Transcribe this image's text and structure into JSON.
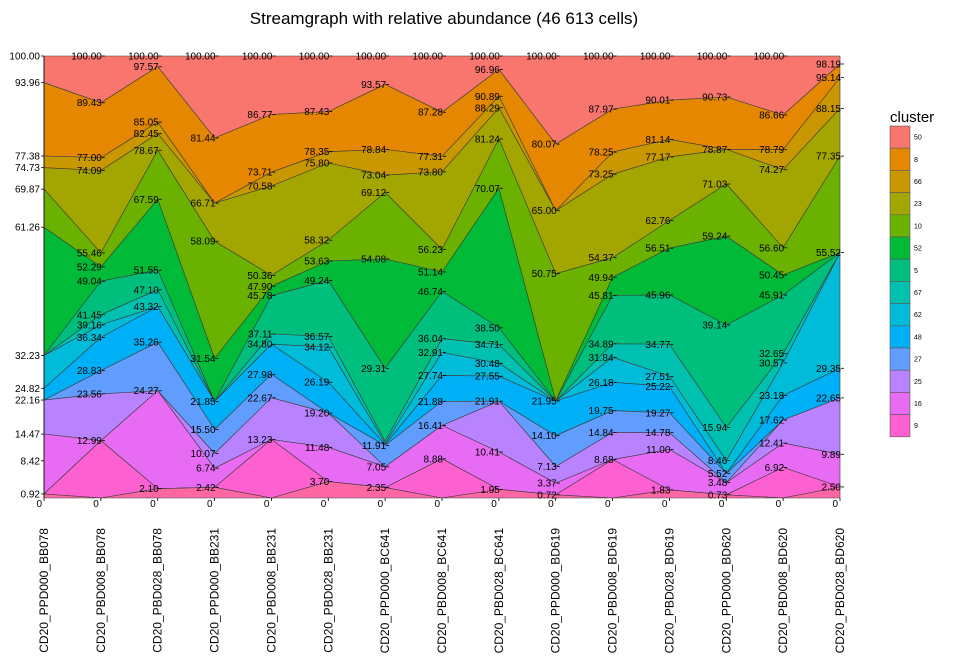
{
  "chart_data": {
    "type": "area",
    "title": "Streamgraph with relative abundance (46 613 cells)",
    "xlabel": "",
    "ylabel": "",
    "ylim": [
      0,
      100
    ],
    "grid": false,
    "legend_position": "right",
    "legend_title": "cluster",
    "categories": [
      "CD20_PPD000_BB078",
      "CD20_PBD008_BB078",
      "CD20_PBD028_BB078",
      "CD20_PPD000_BB231",
      "CD20_PBD008_BB231",
      "CD20_PBD028_BB231",
      "CD20_PPD000_BC641",
      "CD20_PBD008_BC641",
      "CD20_PBD028_BC641",
      "CD20_PPD000_BD619",
      "CD20_PBD008_BD619",
      "CD20_PBD028_BD619",
      "CD20_PPD000_BD620",
      "CD20_PBD008_BD620",
      "CD20_PBD028_BD620"
    ],
    "y_tick_labels": [
      "0.92",
      "8.42",
      "14.47",
      "22.16",
      "24.82",
      "32.23",
      "61.26",
      "69.87",
      "74.73",
      "77.38",
      "93.96",
      "100.00"
    ],
    "y_tick_values": [
      0.92,
      8.42,
      14.47,
      22.16,
      24.82,
      32.23,
      61.26,
      69.87,
      74.73,
      77.38,
      93.96,
      100.0
    ],
    "baseline_labels": [
      "0",
      "0",
      "0",
      "0",
      "0",
      "0",
      "0",
      "0",
      "0",
      "0",
      "0",
      "0",
      "0",
      "0",
      "0"
    ],
    "series": [
      {
        "name": "50",
        "color": "#F8766D",
        "upper": [
          100,
          100,
          100,
          100,
          100,
          100,
          100,
          100,
          100,
          100,
          100,
          100,
          100,
          100,
          100
        ]
      },
      {
        "name": "8",
        "color": "#E58700",
        "upper": [
          93.96,
          89.43,
          97.57,
          81.44,
          86.77,
          87.43,
          93.57,
          87.28,
          96.96,
          80.07,
          87.97,
          90.01,
          90.73,
          86.66,
          98.19
        ]
      },
      {
        "name": "66",
        "color": "#C99800",
        "upper": [
          77.38,
          77.0,
          85.05,
          66.71,
          73.71,
          78.35,
          78.84,
          77.31,
          90.89,
          65.0,
          78.25,
          81.14,
          78.87,
          78.79,
          95.14
        ]
      },
      {
        "name": "23",
        "color": "#A3A500",
        "upper": [
          74.73,
          74.09,
          82.45,
          66.71,
          70.58,
          75.8,
          73.04,
          73.8,
          88.29,
          65.0,
          73.25,
          77.17,
          78.87,
          74.27,
          88.15
        ]
      },
      {
        "name": "10",
        "color": "#6BB100",
        "upper": [
          69.87,
          55.46,
          78.67,
          58.09,
          50.36,
          58.32,
          69.12,
          56.23,
          81.24,
          50.75,
          54.37,
          62.76,
          71.03,
          56.6,
          77.35
        ]
      },
      {
        "name": "52",
        "color": "#00BA38",
        "upper": [
          61.26,
          52.29,
          67.59,
          31.54,
          47.9,
          53.63,
          54.08,
          51.14,
          70.07,
          21.95,
          49.94,
          56.51,
          59.24,
          50.45,
          55.52
        ]
      },
      {
        "name": "5",
        "color": "#00BF7D",
        "upper": [
          32.23,
          49.04,
          51.55,
          21.85,
          45.78,
          49.24,
          29.31,
          46.74,
          38.5,
          21.95,
          45.81,
          45.96,
          39.14,
          45.91,
          55.52
        ]
      },
      {
        "name": "67",
        "color": "#00C0AF",
        "upper": [
          32.23,
          41.45,
          47.1,
          21.85,
          37.11,
          36.57,
          12.8,
          36.04,
          34.71,
          21.95,
          34.89,
          34.77,
          15.94,
          32.65,
          55.52
        ]
      },
      {
        "name": "62",
        "color": "#00BCD8",
        "upper": [
          32.23,
          39.16,
          43.32,
          21.85,
          34.8,
          34.12,
          12.3,
          32.91,
          30.48,
          21.95,
          31.84,
          27.51,
          8.46,
          30.57,
          55.52
        ]
      },
      {
        "name": "48",
        "color": "#00B0F6",
        "upper": [
          24.82,
          36.34,
          43.32,
          21.85,
          34.8,
          26.19,
          12.1,
          27.74,
          27.55,
          21.95,
          26.18,
          25.22,
          5.52,
          23.18,
          29.35
        ]
      },
      {
        "name": "27",
        "color": "#619CFF",
        "upper": [
          22.16,
          28.83,
          35.26,
          15.5,
          27.98,
          19.2,
          11.91,
          21.88,
          21.91,
          14.1,
          19.75,
          19.27,
          5.52,
          17.62,
          22.65
        ]
      },
      {
        "name": "25",
        "color": "#B983FF",
        "upper": [
          22.16,
          23.56,
          24.27,
          10.07,
          22.67,
          19.2,
          7.05,
          16.41,
          21.91,
          7.13,
          14.84,
          14.78,
          3.48,
          17.62,
          22.65
        ]
      },
      {
        "name": "16",
        "color": "#E76BF3",
        "upper": [
          14.47,
          12.99,
          24.27,
          6.74,
          13.23,
          11.48,
          7.05,
          16.41,
          10.41,
          3.37,
          8.68,
          11.0,
          3.48,
          12.41,
          9.89
        ]
      },
      {
        "name": "9",
        "color": "#FD61D1",
        "upper": [
          0.92,
          12.99,
          2.1,
          2.42,
          13.23,
          3.7,
          2.35,
          8.88,
          1.95,
          0.72,
          8.68,
          1.83,
          0.73,
          6.92,
          2.5
        ]
      },
      {
        "name": "",
        "color": "#FF67A4",
        "upper": [
          0.92,
          0,
          2.1,
          2.42,
          0,
          3.7,
          2.35,
          0,
          1.95,
          0.72,
          0,
          1.83,
          0.73,
          0,
          2.5
        ]
      }
    ],
    "data_labels": [
      {
        "x": 1,
        "y": 100.0,
        "text": "100.00"
      },
      {
        "x": 2,
        "y": 100.0,
        "text": "100.00"
      },
      {
        "x": 3,
        "y": 100.0,
        "text": "100.00"
      },
      {
        "x": 4,
        "y": 100.0,
        "text": "100.00"
      },
      {
        "x": 5,
        "y": 100.0,
        "text": "100.00"
      },
      {
        "x": 6,
        "y": 100.0,
        "text": "100.00"
      },
      {
        "x": 7,
        "y": 100.0,
        "text": "100.00"
      },
      {
        "x": 8,
        "y": 100.0,
        "text": "100.00"
      },
      {
        "x": 9,
        "y": 100.0,
        "text": "100.00"
      },
      {
        "x": 10,
        "y": 100.0,
        "text": "100.00"
      },
      {
        "x": 11,
        "y": 100.0,
        "text": "100.00"
      },
      {
        "x": 12,
        "y": 100.0,
        "text": "100.00"
      },
      {
        "x": 13,
        "y": 100.0,
        "text": "100.00"
      },
      {
        "x": 1,
        "y": 89.43,
        "text": "89.43"
      },
      {
        "x": 1,
        "y": 77.0,
        "text": "77.00"
      },
      {
        "x": 1,
        "y": 74.09,
        "text": "74.09"
      },
      {
        "x": 1,
        "y": 55.46,
        "text": "55.46"
      },
      {
        "x": 1,
        "y": 52.29,
        "text": "52.29"
      },
      {
        "x": 1,
        "y": 49.04,
        "text": "49.04"
      },
      {
        "x": 1,
        "y": 41.45,
        "text": "41.45"
      },
      {
        "x": 1,
        "y": 39.16,
        "text": "39.16"
      },
      {
        "x": 1,
        "y": 36.34,
        "text": "36.34"
      },
      {
        "x": 1,
        "y": 28.83,
        "text": "28.83"
      },
      {
        "x": 1,
        "y": 23.56,
        "text": "23.56"
      },
      {
        "x": 1,
        "y": 12.99,
        "text": "12.99"
      },
      {
        "x": 2,
        "y": 97.57,
        "text": "97.57"
      },
      {
        "x": 2,
        "y": 85.05,
        "text": "85.05"
      },
      {
        "x": 2,
        "y": 82.45,
        "text": "82.45"
      },
      {
        "x": 2,
        "y": 78.67,
        "text": "78.67"
      },
      {
        "x": 2,
        "y": 67.59,
        "text": "67.59"
      },
      {
        "x": 2,
        "y": 51.55,
        "text": "51.55"
      },
      {
        "x": 2,
        "y": 47.1,
        "text": "47.10"
      },
      {
        "x": 2,
        "y": 43.32,
        "text": "43.32"
      },
      {
        "x": 2,
        "y": 35.26,
        "text": "35.26"
      },
      {
        "x": 2,
        "y": 24.27,
        "text": "24.27"
      },
      {
        "x": 2,
        "y": 2.1,
        "text": "2.10"
      },
      {
        "x": 3,
        "y": 81.44,
        "text": "81.44"
      },
      {
        "x": 3,
        "y": 66.71,
        "text": "66.71"
      },
      {
        "x": 3,
        "y": 58.09,
        "text": "58.09"
      },
      {
        "x": 3,
        "y": 31.54,
        "text": "31.54"
      },
      {
        "x": 3,
        "y": 21.85,
        "text": "21.85"
      },
      {
        "x": 3,
        "y": 15.5,
        "text": "15.50"
      },
      {
        "x": 3,
        "y": 10.07,
        "text": "10.07"
      },
      {
        "x": 3,
        "y": 6.74,
        "text": "6.74"
      },
      {
        "x": 3,
        "y": 2.42,
        "text": "2.42"
      },
      {
        "x": 4,
        "y": 86.77,
        "text": "86.77"
      },
      {
        "x": 4,
        "y": 73.71,
        "text": "73.71"
      },
      {
        "x": 4,
        "y": 70.58,
        "text": "70.58"
      },
      {
        "x": 4,
        "y": 50.36,
        "text": "50.36"
      },
      {
        "x": 4,
        "y": 47.9,
        "text": "47.90"
      },
      {
        "x": 4,
        "y": 45.78,
        "text": "45.78"
      },
      {
        "x": 4,
        "y": 37.11,
        "text": "37.11"
      },
      {
        "x": 4,
        "y": 34.8,
        "text": "34.80"
      },
      {
        "x": 4,
        "y": 27.98,
        "text": "27.98"
      },
      {
        "x": 4,
        "y": 22.67,
        "text": "22.67"
      },
      {
        "x": 4,
        "y": 13.23,
        "text": "13.23"
      },
      {
        "x": 5,
        "y": 87.43,
        "text": "87.43"
      },
      {
        "x": 5,
        "y": 78.35,
        "text": "78.35"
      },
      {
        "x": 5,
        "y": 75.8,
        "text": "75.80"
      },
      {
        "x": 5,
        "y": 58.32,
        "text": "58.32"
      },
      {
        "x": 5,
        "y": 53.63,
        "text": "53.63"
      },
      {
        "x": 5,
        "y": 49.24,
        "text": "49.24"
      },
      {
        "x": 5,
        "y": 36.57,
        "text": "36.57"
      },
      {
        "x": 5,
        "y": 34.12,
        "text": "34.12"
      },
      {
        "x": 5,
        "y": 26.19,
        "text": "26.19"
      },
      {
        "x": 5,
        "y": 19.2,
        "text": "19.20"
      },
      {
        "x": 5,
        "y": 11.48,
        "text": "11.48"
      },
      {
        "x": 5,
        "y": 3.7,
        "text": "3.70"
      },
      {
        "x": 6,
        "y": 93.57,
        "text": "93.57"
      },
      {
        "x": 6,
        "y": 78.84,
        "text": "78.84"
      },
      {
        "x": 6,
        "y": 73.04,
        "text": "73.04"
      },
      {
        "x": 6,
        "y": 69.12,
        "text": "69.12"
      },
      {
        "x": 6,
        "y": 54.08,
        "text": "54.08"
      },
      {
        "x": 6,
        "y": 29.31,
        "text": "29.31"
      },
      {
        "x": 6,
        "y": 11.91,
        "text": "11.91"
      },
      {
        "x": 6,
        "y": 7.05,
        "text": "7.05"
      },
      {
        "x": 6,
        "y": 2.35,
        "text": "2.35"
      },
      {
        "x": 7,
        "y": 87.28,
        "text": "87.28"
      },
      {
        "x": 7,
        "y": 77.31,
        "text": "77.31"
      },
      {
        "x": 7,
        "y": 73.8,
        "text": "73.80"
      },
      {
        "x": 7,
        "y": 56.23,
        "text": "56.23"
      },
      {
        "x": 7,
        "y": 51.14,
        "text": "51.14"
      },
      {
        "x": 7,
        "y": 46.74,
        "text": "46.74"
      },
      {
        "x": 7,
        "y": 36.04,
        "text": "36.04"
      },
      {
        "x": 7,
        "y": 32.91,
        "text": "32.91"
      },
      {
        "x": 7,
        "y": 27.74,
        "text": "27.74"
      },
      {
        "x": 7,
        "y": 21.88,
        "text": "21.88"
      },
      {
        "x": 7,
        "y": 16.41,
        "text": "16.41"
      },
      {
        "x": 7,
        "y": 8.88,
        "text": "8.88"
      },
      {
        "x": 8,
        "y": 96.96,
        "text": "96.96"
      },
      {
        "x": 8,
        "y": 90.89,
        "text": "90.89"
      },
      {
        "x": 8,
        "y": 88.29,
        "text": "88.29"
      },
      {
        "x": 8,
        "y": 81.24,
        "text": "81.24"
      },
      {
        "x": 8,
        "y": 70.07,
        "text": "70.07"
      },
      {
        "x": 8,
        "y": 38.5,
        "text": "38.50"
      },
      {
        "x": 8,
        "y": 34.71,
        "text": "34.71"
      },
      {
        "x": 8,
        "y": 30.48,
        "text": "30.48"
      },
      {
        "x": 8,
        "y": 27.55,
        "text": "27.55"
      },
      {
        "x": 8,
        "y": 21.91,
        "text": "21.91"
      },
      {
        "x": 8,
        "y": 10.41,
        "text": "10.41"
      },
      {
        "x": 8,
        "y": 1.95,
        "text": "1.95"
      },
      {
        "x": 9,
        "y": 80.07,
        "text": "80.07"
      },
      {
        "x": 9,
        "y": 65.0,
        "text": "65.00"
      },
      {
        "x": 9,
        "y": 50.75,
        "text": "50.75"
      },
      {
        "x": 9,
        "y": 21.95,
        "text": "21.95"
      },
      {
        "x": 9,
        "y": 14.1,
        "text": "14.10"
      },
      {
        "x": 9,
        "y": 7.13,
        "text": "7.13"
      },
      {
        "x": 9,
        "y": 3.37,
        "text": "3.37"
      },
      {
        "x": 9,
        "y": 0.72,
        "text": "0.72"
      },
      {
        "x": 10,
        "y": 87.97,
        "text": "87.97"
      },
      {
        "x": 10,
        "y": 78.25,
        "text": "78.25"
      },
      {
        "x": 10,
        "y": 73.25,
        "text": "73.25"
      },
      {
        "x": 10,
        "y": 54.37,
        "text": "54.37"
      },
      {
        "x": 10,
        "y": 49.94,
        "text": "49.94"
      },
      {
        "x": 10,
        "y": 45.81,
        "text": "45.81"
      },
      {
        "x": 10,
        "y": 34.89,
        "text": "34.89"
      },
      {
        "x": 10,
        "y": 31.84,
        "text": "31.84"
      },
      {
        "x": 10,
        "y": 26.18,
        "text": "26.18"
      },
      {
        "x": 10,
        "y": 19.75,
        "text": "19.75"
      },
      {
        "x": 10,
        "y": 14.84,
        "text": "14.84"
      },
      {
        "x": 10,
        "y": 8.68,
        "text": "8.68"
      },
      {
        "x": 11,
        "y": 90.01,
        "text": "90.01"
      },
      {
        "x": 11,
        "y": 81.14,
        "text": "81.14"
      },
      {
        "x": 11,
        "y": 77.17,
        "text": "77.17"
      },
      {
        "x": 11,
        "y": 62.76,
        "text": "62.76"
      },
      {
        "x": 11,
        "y": 56.51,
        "text": "56.51"
      },
      {
        "x": 11,
        "y": 45.96,
        "text": "45.96"
      },
      {
        "x": 11,
        "y": 34.77,
        "text": "34.77"
      },
      {
        "x": 11,
        "y": 27.51,
        "text": "27.51"
      },
      {
        "x": 11,
        "y": 25.22,
        "text": "25.22"
      },
      {
        "x": 11,
        "y": 19.27,
        "text": "19.27"
      },
      {
        "x": 11,
        "y": 14.78,
        "text": "14.78"
      },
      {
        "x": 11,
        "y": 11.0,
        "text": "11.00"
      },
      {
        "x": 11,
        "y": 1.83,
        "text": "1.83"
      },
      {
        "x": 12,
        "y": 90.73,
        "text": "90.73"
      },
      {
        "x": 12,
        "y": 78.87,
        "text": "78.87"
      },
      {
        "x": 12,
        "y": 71.03,
        "text": "71.03"
      },
      {
        "x": 12,
        "y": 59.24,
        "text": "59.24"
      },
      {
        "x": 12,
        "y": 39.14,
        "text": "39.14"
      },
      {
        "x": 12,
        "y": 15.94,
        "text": "15.94"
      },
      {
        "x": 12,
        "y": 8.46,
        "text": "8.46"
      },
      {
        "x": 12,
        "y": 5.52,
        "text": "5.52"
      },
      {
        "x": 12,
        "y": 3.48,
        "text": "3.48"
      },
      {
        "x": 12,
        "y": 0.73,
        "text": "0.73"
      },
      {
        "x": 13,
        "y": 86.66,
        "text": "86.66"
      },
      {
        "x": 13,
        "y": 78.79,
        "text": "78.79"
      },
      {
        "x": 13,
        "y": 74.27,
        "text": "74.27"
      },
      {
        "x": 13,
        "y": 56.6,
        "text": "56.60"
      },
      {
        "x": 13,
        "y": 50.45,
        "text": "50.45"
      },
      {
        "x": 13,
        "y": 45.91,
        "text": "45.91"
      },
      {
        "x": 13,
        "y": 32.65,
        "text": "32.65"
      },
      {
        "x": 13,
        "y": 30.57,
        "text": "30.57"
      },
      {
        "x": 13,
        "y": 23.18,
        "text": "23.18"
      },
      {
        "x": 13,
        "y": 17.62,
        "text": "17.62"
      },
      {
        "x": 13,
        "y": 12.41,
        "text": "12.41"
      },
      {
        "x": 13,
        "y": 6.92,
        "text": "6.92"
      },
      {
        "x": 14,
        "y": 98.19,
        "text": "98.19"
      },
      {
        "x": 14,
        "y": 95.14,
        "text": "95.14"
      },
      {
        "x": 14,
        "y": 88.15,
        "text": "88.15"
      },
      {
        "x": 14,
        "y": 77.35,
        "text": "77.35"
      },
      {
        "x": 14,
        "y": 55.52,
        "text": "55.52"
      },
      {
        "x": 14,
        "y": 29.35,
        "text": "29.35"
      },
      {
        "x": 14,
        "y": 22.65,
        "text": "22.65"
      },
      {
        "x": 14,
        "y": 9.89,
        "text": "9.89"
      },
      {
        "x": 14,
        "y": 2.5,
        "text": "2.50"
      }
    ]
  }
}
